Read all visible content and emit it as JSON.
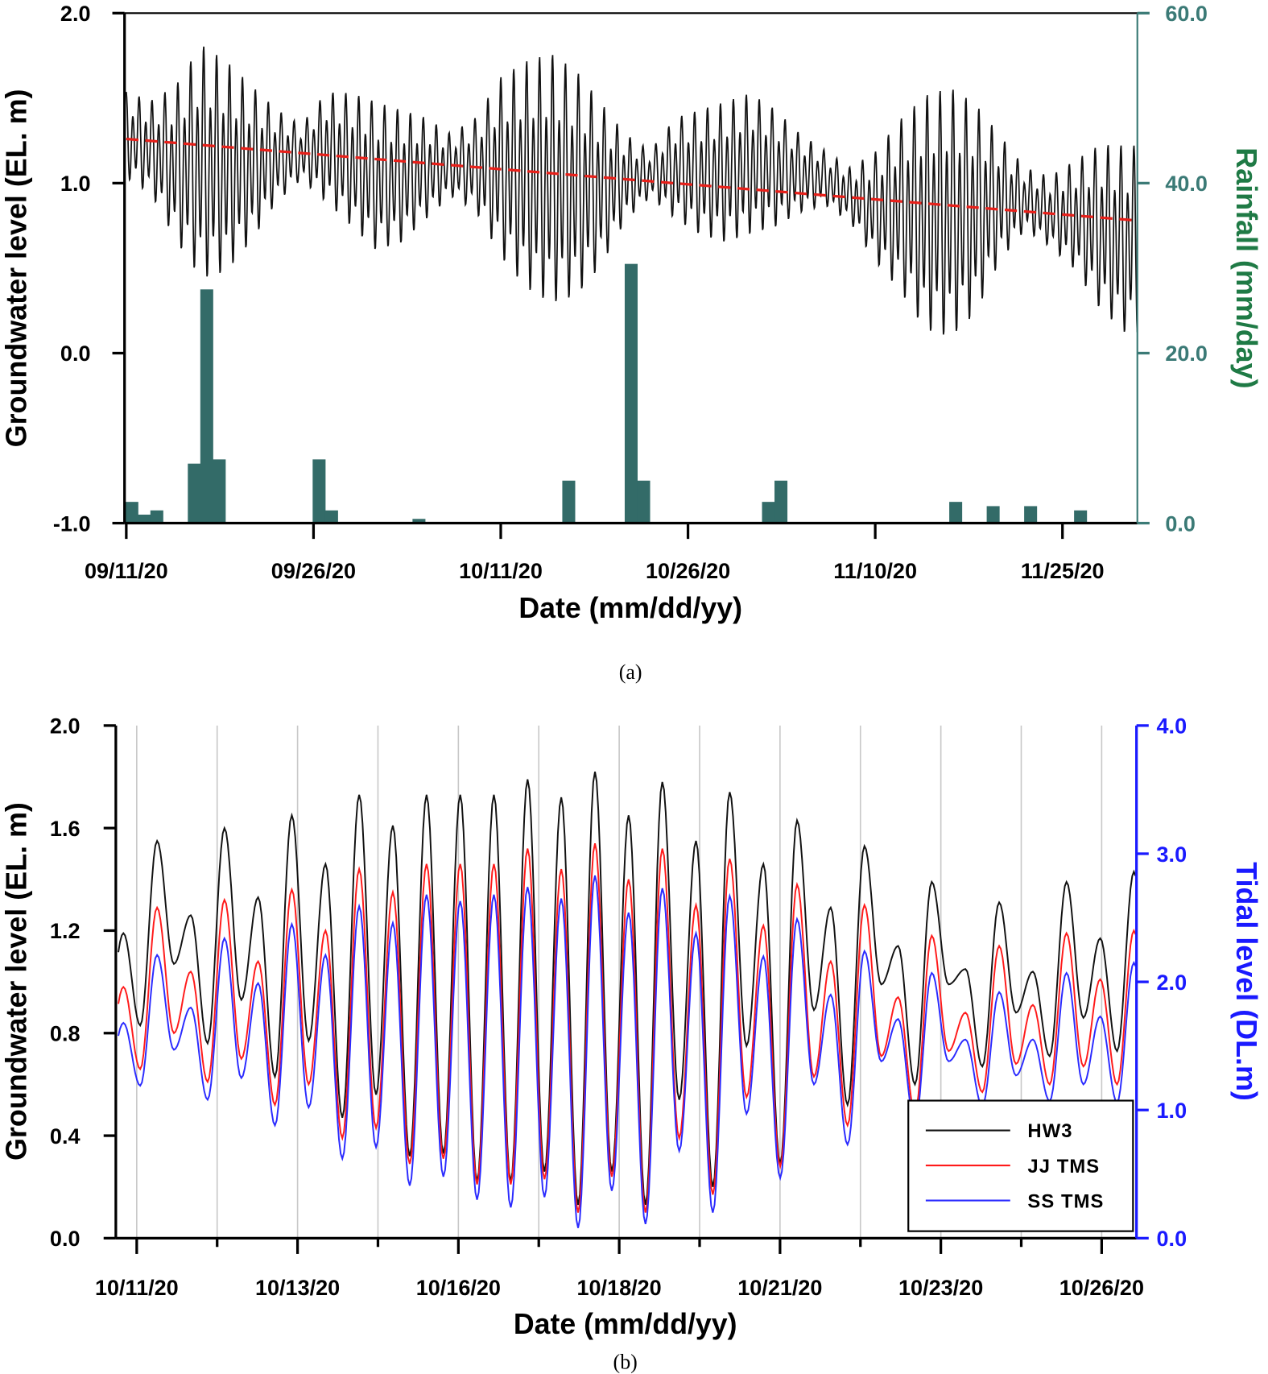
{
  "chart_data": [
    {
      "panel_label": "(a)",
      "type": "line+bar",
      "xlabel": "Date (mm/dd/yy)",
      "ylabel": "Groundwater level (EL. m)",
      "y2label": "Rainfall (mm/day)",
      "xlim": [
        "09/11/20",
        "12/01/20"
      ],
      "x_ticks": [
        "09/11/20",
        "09/26/20",
        "10/11/20",
        "10/26/20",
        "11/10/20",
        "11/25/20"
      ],
      "ylim": [
        -1.0,
        2.0
      ],
      "y_ticks": [
        "2.0",
        "1.0",
        "0.0",
        "-1.0"
      ],
      "y2lim": [
        0,
        60
      ],
      "y2_ticks": [
        "60.0",
        "40.0",
        "20.0",
        "0.0"
      ],
      "grid": false,
      "colors": {
        "groundwater": "#111111",
        "trend": "#e8201a",
        "rainfall": "#336b68",
        "right_axis": "#3b7a76",
        "right_label": "#1f7a45"
      },
      "groundwater_envelope": [
        {
          "date": "09/11/20",
          "high": 1.55,
          "low": 1.0
        },
        {
          "date": "09/13/20",
          "high": 1.5,
          "low": 0.9
        },
        {
          "date": "09/15/20",
          "high": 1.6,
          "low": 0.6
        },
        {
          "date": "09/17/20",
          "high": 1.85,
          "low": 0.35
        },
        {
          "date": "09/19/20",
          "high": 1.75,
          "low": 0.4
        },
        {
          "date": "09/21/20",
          "high": 1.6,
          "low": 0.6
        },
        {
          "date": "09/23/20",
          "high": 1.45,
          "low": 0.85
        },
        {
          "date": "09/25/20",
          "high": 1.35,
          "low": 1.0
        },
        {
          "date": "09/27/20",
          "high": 1.55,
          "low": 0.85
        },
        {
          "date": "09/29/20",
          "high": 1.55,
          "low": 0.7
        },
        {
          "date": "10/01/20",
          "high": 1.5,
          "low": 0.55
        },
        {
          "date": "10/03/20",
          "high": 1.45,
          "low": 0.6
        },
        {
          "date": "10/05/20",
          "high": 1.4,
          "low": 0.75
        },
        {
          "date": "10/07/20",
          "high": 1.3,
          "low": 0.9
        },
        {
          "date": "10/09/20",
          "high": 1.4,
          "low": 0.8
        },
        {
          "date": "10/11/20",
          "high": 1.65,
          "low": 0.5
        },
        {
          "date": "10/13/20",
          "high": 1.75,
          "low": 0.3
        },
        {
          "date": "10/15/20",
          "high": 1.8,
          "low": 0.2
        },
        {
          "date": "10/17/20",
          "high": 1.7,
          "low": 0.25
        },
        {
          "date": "10/19/20",
          "high": 1.5,
          "low": 0.45
        },
        {
          "date": "10/21/20",
          "high": 1.3,
          "low": 0.75
        },
        {
          "date": "10/23/20",
          "high": 1.2,
          "low": 0.9
        },
        {
          "date": "10/25/20",
          "high": 1.4,
          "low": 0.75
        },
        {
          "date": "10/27/20",
          "high": 1.45,
          "low": 0.65
        },
        {
          "date": "10/29/20",
          "high": 1.5,
          "low": 0.6
        },
        {
          "date": "10/31/20",
          "high": 1.55,
          "low": 0.65
        },
        {
          "date": "11/02/20",
          "high": 1.45,
          "low": 0.7
        },
        {
          "date": "11/04/20",
          "high": 1.3,
          "low": 0.8
        },
        {
          "date": "11/06/20",
          "high": 1.2,
          "low": 0.85
        },
        {
          "date": "11/08/20",
          "high": 1.1,
          "low": 0.75
        },
        {
          "date": "11/10/20",
          "high": 1.2,
          "low": 0.5
        },
        {
          "date": "11/12/20",
          "high": 1.4,
          "low": 0.3
        },
        {
          "date": "11/14/20",
          "high": 1.55,
          "low": 0.05
        },
        {
          "date": "11/16/20",
          "high": 1.6,
          "low": 0.0
        },
        {
          "date": "11/18/20",
          "high": 1.5,
          "low": 0.15
        },
        {
          "date": "11/20/20",
          "high": 1.3,
          "low": 0.5
        },
        {
          "date": "11/22/20",
          "high": 1.1,
          "low": 0.7
        },
        {
          "date": "11/24/20",
          "high": 1.05,
          "low": 0.6
        },
        {
          "date": "11/26/20",
          "high": 1.15,
          "low": 0.45
        },
        {
          "date": "11/28/20",
          "high": 1.25,
          "low": 0.2
        },
        {
          "date": "11/30/20",
          "high": 1.25,
          "low": 0.05
        }
      ],
      "trend": [
        {
          "date": "09/11/20",
          "value": 1.26
        },
        {
          "date": "12/01/20",
          "value": 0.78
        }
      ],
      "rainfall": [
        {
          "date": "09/11/20",
          "value": 2.5
        },
        {
          "date": "09/12/20",
          "value": 1.0
        },
        {
          "date": "09/13/20",
          "value": 1.5
        },
        {
          "date": "09/16/20",
          "value": 7.0
        },
        {
          "date": "09/17/20",
          "value": 27.5
        },
        {
          "date": "09/18/20",
          "value": 7.5
        },
        {
          "date": "09/26/20",
          "value": 7.5
        },
        {
          "date": "09/27/20",
          "value": 1.5
        },
        {
          "date": "10/04/20",
          "value": 0.5
        },
        {
          "date": "10/16/20",
          "value": 5.0
        },
        {
          "date": "10/21/20",
          "value": 30.5
        },
        {
          "date": "10/22/20",
          "value": 5.0
        },
        {
          "date": "11/01/20",
          "value": 2.5
        },
        {
          "date": "11/02/20",
          "value": 5.0
        },
        {
          "date": "11/16/20",
          "value": 2.5
        },
        {
          "date": "11/19/20",
          "value": 2.0
        },
        {
          "date": "11/22/20",
          "value": 2.0
        },
        {
          "date": "11/26/20",
          "value": 1.5
        }
      ]
    },
    {
      "panel_label": "(b)",
      "type": "line",
      "xlabel": "Date (mm/dd/yy)",
      "ylabel": "Groundwater level (EL. m)",
      "y2label": "Tidal level (DL.m)",
      "x_ticks": [
        "10/11/20",
        "10/13/20",
        "10/16/20",
        "10/18/20",
        "10/21/20",
        "10/23/20",
        "10/26/20"
      ],
      "ylim": [
        0.0,
        2.0
      ],
      "y_ticks": [
        "2.0",
        "1.6",
        "1.2",
        "0.8",
        "0.4",
        "0.0"
      ],
      "y2lim": [
        0.0,
        4.0
      ],
      "y2_ticks": [
        "4.0",
        "3.0",
        "2.0",
        "1.0",
        "0.0"
      ],
      "grid": "vertical",
      "legend_position": "bottom-right",
      "colors": {
        "right_axis": "#1a1aff"
      },
      "series": [
        {
          "name": "HW3",
          "color": "#111111",
          "axis": "left",
          "highs": [
            1.19,
            1.55,
            1.26,
            1.6,
            1.33,
            1.65,
            1.46,
            1.73,
            1.61,
            1.73,
            1.73,
            1.73,
            1.79,
            1.72,
            1.82,
            1.65,
            1.78,
            1.55,
            1.74,
            1.46,
            1.63,
            1.29,
            1.53,
            1.14,
            1.39,
            1.05,
            1.31,
            1.04,
            1.39,
            1.17,
            1.43
          ],
          "lows": [
            0.83,
            1.07,
            0.76,
            0.93,
            0.63,
            0.77,
            0.47,
            0.56,
            0.32,
            0.33,
            0.22,
            0.22,
            0.26,
            0.13,
            0.26,
            0.13,
            0.54,
            0.2,
            0.75,
            0.29,
            0.89,
            0.52,
            0.99,
            0.6,
            0.99,
            0.67,
            0.88,
            0.71,
            0.86,
            0.73
          ]
        },
        {
          "name": "JJ TMS",
          "color": "#ff1a1a",
          "axis": "left",
          "highs": [
            0.98,
            1.29,
            1.04,
            1.32,
            1.08,
            1.36,
            1.2,
            1.44,
            1.35,
            1.46,
            1.46,
            1.46,
            1.52,
            1.44,
            1.54,
            1.4,
            1.52,
            1.3,
            1.48,
            1.22,
            1.38,
            1.08,
            1.3,
            0.94,
            1.18,
            0.88,
            1.14,
            0.91,
            1.19,
            1.01,
            1.2
          ],
          "lows": [
            0.66,
            0.8,
            0.61,
            0.7,
            0.52,
            0.6,
            0.39,
            0.43,
            0.29,
            0.31,
            0.21,
            0.21,
            0.23,
            0.1,
            0.24,
            0.1,
            0.39,
            0.17,
            0.55,
            0.28,
            0.63,
            0.44,
            0.71,
            0.49,
            0.73,
            0.57,
            0.68,
            0.6,
            0.67,
            0.6
          ]
        },
        {
          "name": "SS TMS",
          "color": "#2a2aff",
          "axis": "right",
          "highs": [
            1.68,
            2.21,
            1.8,
            2.34,
            1.99,
            2.45,
            2.21,
            2.59,
            2.46,
            2.68,
            2.63,
            2.68,
            2.74,
            2.65,
            2.83,
            2.54,
            2.73,
            2.38,
            2.67,
            2.2,
            2.49,
            1.9,
            2.24,
            1.71,
            2.07,
            1.55,
            1.92,
            1.55,
            2.07,
            1.73,
            2.15
          ],
          "lows": [
            1.19,
            1.47,
            1.08,
            1.25,
            0.88,
            1.02,
            0.62,
            0.71,
            0.41,
            0.48,
            0.3,
            0.24,
            0.32,
            0.08,
            0.37,
            0.11,
            0.68,
            0.2,
            0.97,
            0.47,
            1.2,
            0.73,
            1.38,
            0.89,
            1.38,
            1.03,
            1.27,
            1.07,
            1.2,
            1.06
          ]
        }
      ]
    }
  ]
}
